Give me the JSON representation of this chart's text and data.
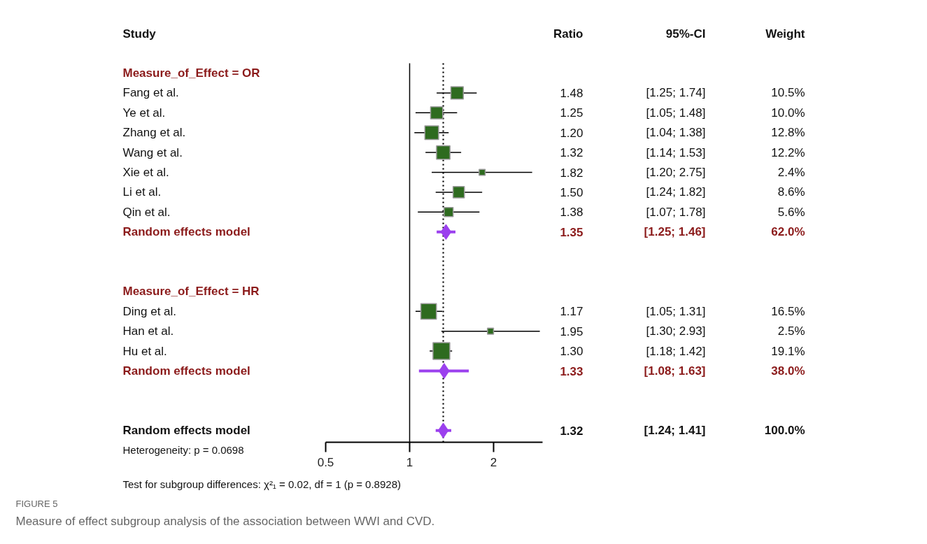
{
  "chart_data": {
    "type": "scatter",
    "orientation": "horizontal",
    "log": "x",
    "ylabel": "Study",
    "categories": [
      "Measure_of_Effect = OR",
      "Fang et al.",
      "Ye et al.",
      "Zhang et al.",
      "Wang et al.",
      "Xie et al.",
      "Li et al.",
      "Qin et al.",
      "Random effects model",
      null,
      null,
      "Measure_of_Effect = HR",
      "Ding et al.",
      "Han et al.",
      "Hu et al.",
      "Random effects model",
      null,
      null,
      "Random effects model"
    ],
    "series": [
      {
        "type": "bubble",
        "marker": "square",
        "color": "#2e6b1f",
        "values": [
          null,
          1.48,
          1.25,
          1.2,
          1.32,
          1.82,
          1.5,
          1.38,
          null,
          null,
          null,
          null,
          1.17,
          1.95,
          1.3,
          null,
          null,
          null,
          null
        ],
        "errors": [
          null,
          [
            1.25,
            1.74
          ],
          [
            1.05,
            1.48
          ],
          [
            1.04,
            1.38
          ],
          [
            1.14,
            1.53
          ],
          [
            1.2,
            2.75
          ],
          [
            1.24,
            1.82
          ],
          [
            1.07,
            1.78
          ],
          null,
          null,
          null,
          null,
          [
            1.05,
            1.31
          ],
          [
            1.3,
            2.93
          ],
          [
            1.18,
            1.42
          ],
          null,
          null,
          null,
          null
        ],
        "sizes": [
          null,
          0.55,
          0.52,
          0.67,
          0.64,
          0.13,
          0.45,
          0.29,
          null,
          null,
          null,
          null,
          0.86,
          0.13,
          1,
          null,
          null,
          null,
          null
        ]
      },
      {
        "marker": "diamond",
        "color": "#9b40ee",
        "values": [
          null,
          null,
          null,
          null,
          null,
          null,
          null,
          null,
          1.35,
          null,
          null,
          null,
          null,
          null,
          null,
          1.33,
          null,
          null,
          null
        ],
        "errors": [
          null,
          null,
          null,
          null,
          null,
          null,
          null,
          null,
          [
            1.25,
            1.46
          ],
          null,
          null,
          null,
          null,
          null,
          null,
          [
            1.08,
            1.63
          ],
          null,
          null,
          null
        ]
      },
      {
        "marker": "diamond",
        "color": "#9b40ee",
        "values": [
          null,
          null,
          null,
          null,
          null,
          null,
          null,
          null,
          null,
          null,
          null,
          null,
          null,
          null,
          null,
          null,
          null,
          null,
          1.32
        ],
        "errors": [
          null,
          null,
          null,
          null,
          null,
          null,
          null,
          null,
          null,
          null,
          null,
          null,
          null,
          null,
          null,
          null,
          null,
          null,
          [
            1.24,
            1.41
          ]
        ]
      }
    ],
    "xlim": [
      0.5,
      3
    ],
    "xticks": [
      0.5,
      1,
      2
    ],
    "grid": false,
    "ref_lines": [
      {
        "axis": "x",
        "value": 1,
        "color": "#000000",
        "line_style": "solid"
      },
      {
        "axis": "x",
        "value": 1.32,
        "color": "#000000",
        "line_style": "dotted"
      }
    ],
    "annotations": [
      "Ratio",
      "95%-CI",
      "Weight",
      "1.48",
      "[1.25; 1.74]",
      "10.5%",
      "1.25",
      "[1.05; 1.48]",
      "10.0%",
      "1.20",
      "[1.04; 1.38]",
      "12.8%",
      "1.32",
      "[1.14; 1.53]",
      "12.2%",
      "1.82",
      "[1.20; 2.75]",
      "2.4%",
      "1.50",
      "[1.24; 1.82]",
      "8.6%",
      "1.38",
      "[1.07; 1.78]",
      "5.6%",
      "1.35",
      "[1.25; 1.46]",
      "62.0%",
      "1.17",
      "[1.05; 1.31]",
      "16.5%",
      "1.95",
      "[1.30; 2.93]",
      "2.5%",
      "1.30",
      "[1.18; 1.42]",
      "19.1%",
      "1.33",
      "[1.08; 1.63]",
      "38.0%",
      "1.32",
      "[1.24; 1.41]",
      "100.0%",
      "Heterogeneity: p = 0.0698",
      "Test for subgroup differences: χ²₁ = 0.02, df = 1 (p = 0.8928)",
      "FIGURE 5",
      "Measure of effect subgroup analysis of the association between WWI and CVD."
    ]
  }
}
